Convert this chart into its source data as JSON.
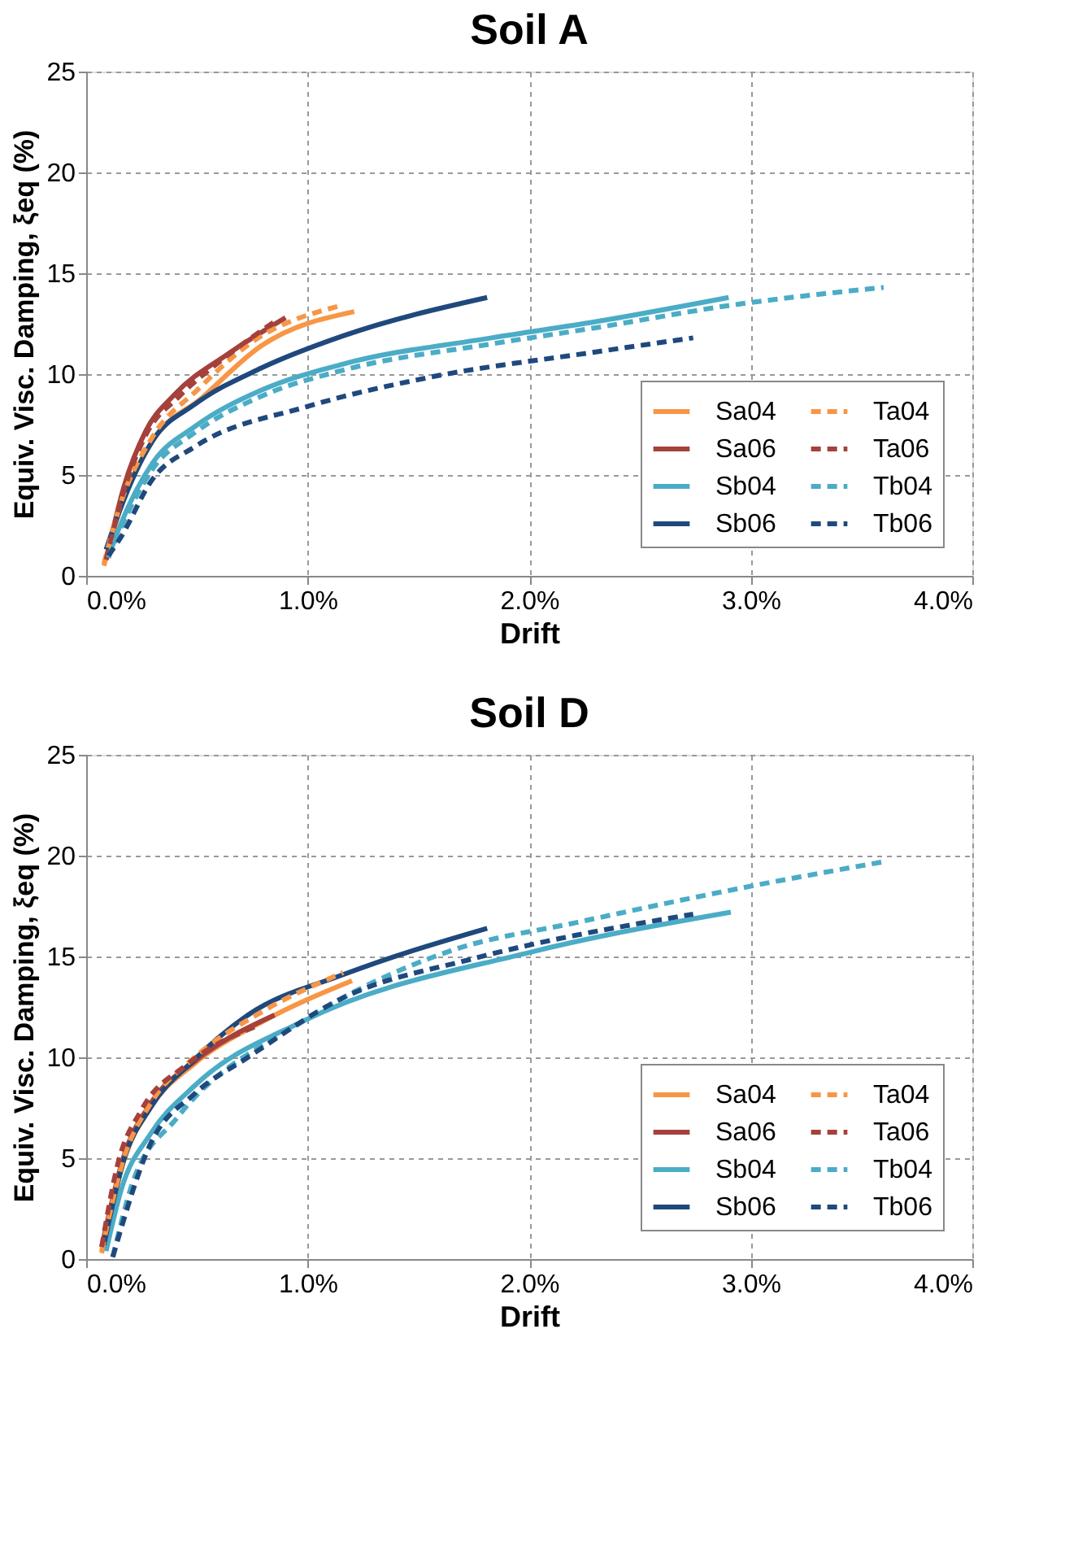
{
  "chart_data": [
    {
      "type": "line",
      "title": "Soil A",
      "xlabel": "Drift",
      "ylabel": "Equiv. Visc. Damping, ξeq (%)",
      "xlim": [
        0,
        4
      ],
      "ylim": [
        0,
        25
      ],
      "xticks": [
        {
          "value": 0,
          "label": "0.0%"
        },
        {
          "value": 1,
          "label": "1.0%"
        },
        {
          "value": 2,
          "label": "2.0%"
        },
        {
          "value": 3,
          "label": "3.0%"
        },
        {
          "value": 4,
          "label": "4.0%"
        }
      ],
      "yticks": [
        0,
        5,
        10,
        15,
        20,
        25
      ],
      "grid": true,
      "legend": "bottom right",
      "series": [
        {
          "name": "Sa04",
          "color": "#f79646",
          "line_style": "solid",
          "x": [
            0.08,
            0.15,
            0.3,
            0.52,
            0.79,
            1.21
          ],
          "values": [
            0.5,
            3.2,
            6.7,
            8.8,
            11.4,
            13.1
          ]
        },
        {
          "name": "Sa06",
          "color": "#a5413c",
          "line_style": "solid",
          "x": [
            0.09,
            0.17,
            0.27,
            0.4,
            0.64,
            0.9
          ],
          "values": [
            0.8,
            4.4,
            7.2,
            9.0,
            11.0,
            12.8
          ]
        },
        {
          "name": "Sb04",
          "color": "#4bacc6",
          "line_style": "solid",
          "x": [
            0.1,
            0.15,
            0.3,
            0.49,
            0.79,
            1.16,
            1.83,
            2.3,
            2.9
          ],
          "values": [
            0.9,
            2.4,
            5.6,
            7.4,
            9.2,
            10.5,
            11.8,
            12.6,
            13.8
          ]
        },
        {
          "name": "Sb06",
          "color": "#1f497d",
          "line_style": "solid",
          "x": [
            0.09,
            0.15,
            0.3,
            0.49,
            0.79,
            1.16,
            1.81
          ],
          "values": [
            1.3,
            3.2,
            6.7,
            8.5,
            10.3,
            11.9,
            13.8
          ]
        },
        {
          "name": "Ta04",
          "color": "#f79646",
          "line_style": "dashed",
          "x": [
            0.08,
            0.15,
            0.3,
            0.5,
            0.75,
            1.15
          ],
          "values": [
            0.6,
            3.4,
            6.9,
            9.2,
            11.6,
            13.4
          ]
        },
        {
          "name": "Ta06",
          "color": "#a5413c",
          "line_style": "dashed",
          "x": [
            0.09,
            0.17,
            0.27,
            0.42,
            0.6,
            0.85
          ],
          "values": [
            0.8,
            4.2,
            7.0,
            8.9,
            10.6,
            12.6
          ]
        },
        {
          "name": "Tb04",
          "color": "#4bacc6",
          "line_style": "dashed",
          "x": [
            0.1,
            0.15,
            0.3,
            0.49,
            0.79,
            1.16,
            1.83,
            2.3,
            2.9,
            3.6
          ],
          "values": [
            0.9,
            2.2,
            5.3,
            7.1,
            8.9,
            10.2,
            11.5,
            12.3,
            13.4,
            14.3
          ]
        },
        {
          "name": "Tb06",
          "color": "#1f497d",
          "line_style": "dashed",
          "x": [
            0.1,
            0.15,
            0.3,
            0.49,
            1.0,
            1.53,
            2.3,
            2.74
          ],
          "values": [
            1.0,
            1.8,
            4.8,
            6.4,
            8.4,
            9.8,
            11.1,
            11.8
          ]
        }
      ]
    },
    {
      "type": "line",
      "title": "Soil D",
      "xlabel": "Drift",
      "ylabel": "Equiv. Visc. Damping, ξeq (%)",
      "xlim": [
        0,
        4
      ],
      "ylim": [
        0,
        25
      ],
      "xticks": [
        {
          "value": 0,
          "label": "0.0%"
        },
        {
          "value": 1,
          "label": "1.0%"
        },
        {
          "value": 2,
          "label": "2.0%"
        },
        {
          "value": 3,
          "label": "3.0%"
        },
        {
          "value": 4,
          "label": "4.0%"
        }
      ],
      "yticks": [
        0,
        5,
        10,
        15,
        20,
        25
      ],
      "grid": true,
      "legend": "bottom right",
      "series": [
        {
          "name": "Sa04",
          "color": "#f79646",
          "line_style": "solid",
          "x": [
            0.07,
            0.17,
            0.29,
            0.49,
            0.8,
            1.2
          ],
          "values": [
            0.3,
            4.9,
            7.5,
            9.7,
            11.8,
            13.8
          ]
        },
        {
          "name": "Sa06",
          "color": "#a5413c",
          "line_style": "solid",
          "x": [
            0.07,
            0.17,
            0.29,
            0.49,
            0.85
          ],
          "values": [
            0.6,
            5.1,
            7.7,
            9.8,
            12.1
          ]
        },
        {
          "name": "Sb04",
          "color": "#4bacc6",
          "line_style": "solid",
          "x": [
            0.09,
            0.16,
            0.29,
            0.49,
            0.98,
            2.0,
            2.91
          ],
          "values": [
            0.4,
            3.5,
            6.2,
            8.6,
            11.8,
            15.2,
            17.2
          ]
        },
        {
          "name": "Sb06",
          "color": "#1f497d",
          "line_style": "solid",
          "x": [
            0.08,
            0.17,
            0.29,
            0.49,
            0.73,
            1.16,
            1.81
          ],
          "values": [
            0.7,
            4.9,
            7.5,
            9.9,
            12.1,
            14.1,
            16.4
          ]
        },
        {
          "name": "Ta04",
          "color": "#f79646",
          "line_style": "dashed",
          "x": [
            0.07,
            0.17,
            0.29,
            0.49,
            0.8,
            1.16
          ],
          "values": [
            0.4,
            5.0,
            7.7,
            10.0,
            12.3,
            14.2
          ]
        },
        {
          "name": "Ta06",
          "color": "#a5413c",
          "line_style": "dashed",
          "x": [
            0.07,
            0.14,
            0.25,
            0.45,
            0.78
          ],
          "values": [
            0.6,
            4.6,
            7.4,
            9.6,
            11.6
          ]
        },
        {
          "name": "Tb04",
          "color": "#4bacc6",
          "line_style": "dashed",
          "x": [
            0.12,
            0.21,
            0.41,
            0.98,
            1.65,
            2.22,
            2.96,
            3.6
          ],
          "values": [
            0.1,
            3.8,
            7.0,
            11.8,
            15.3,
            16.7,
            18.4,
            19.7
          ]
        },
        {
          "name": "Tb06",
          "color": "#1f497d",
          "line_style": "dashed",
          "x": [
            0.12,
            0.29,
            0.49,
            0.73,
            1.15,
            1.75,
            2.74
          ],
          "values": [
            0.1,
            5.7,
            8.2,
            10.0,
            12.9,
            14.9,
            17.1
          ]
        }
      ]
    }
  ]
}
